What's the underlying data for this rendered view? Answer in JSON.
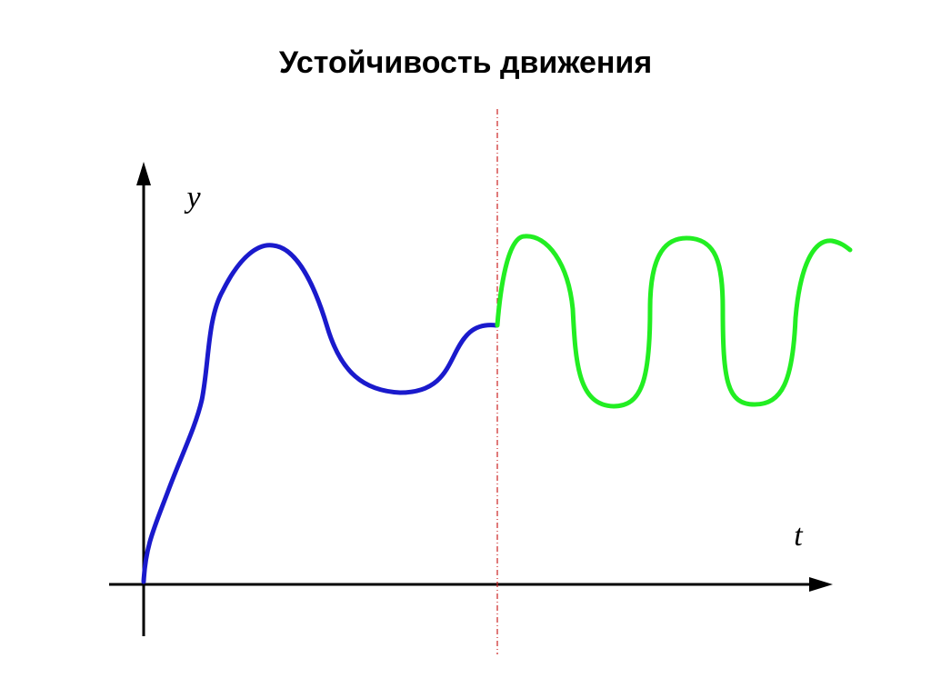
{
  "header": {
    "title": "Устойчивость движения"
  },
  "diagram": {
    "y_axis_label": "y",
    "x_axis_label": "t"
  }
}
